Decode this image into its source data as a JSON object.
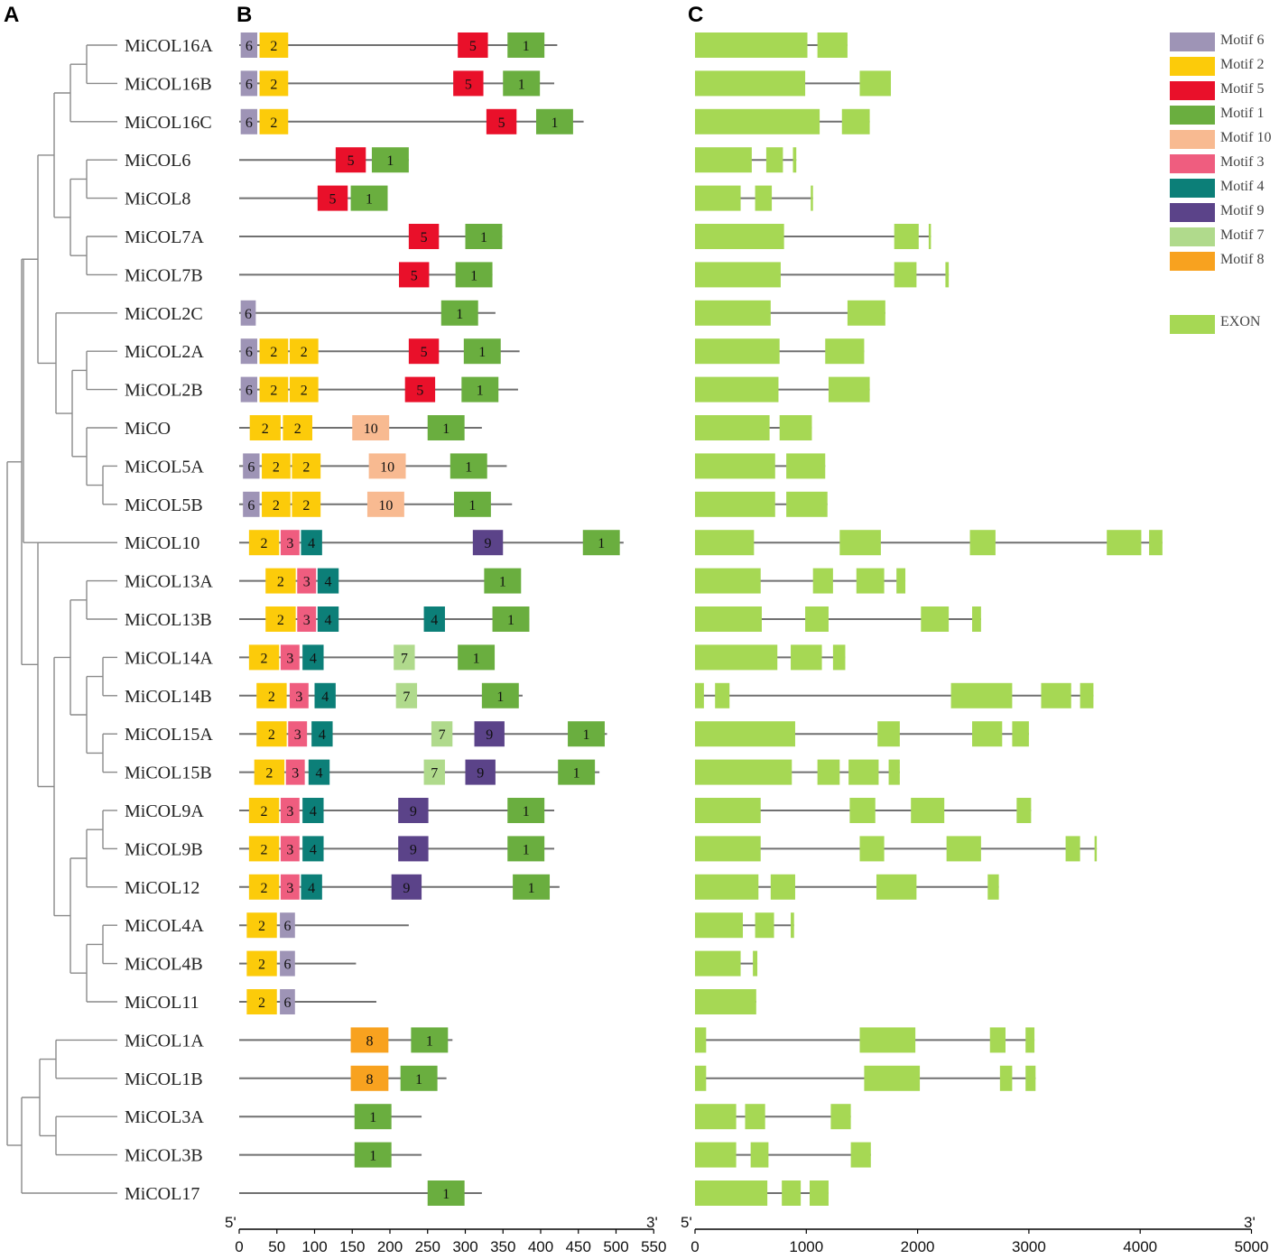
{
  "panels": {
    "a": "A",
    "b": "B",
    "c": "C"
  },
  "genes": [
    "MiCOL16A",
    "MiCOL16B",
    "MiCOL16C",
    "MiCOL6",
    "MiCOL8",
    "MiCOL7A",
    "MiCOL7B",
    "MiCOL2C",
    "MiCOL2A",
    "MiCOL2B",
    "MiCO",
    "MiCOL5A",
    "MiCOL5B",
    "MiCOL10",
    "MiCOL13A",
    "MiCOL13B",
    "MiCOL14A",
    "MiCOL14B",
    "MiCOL15A",
    "MiCOL15B",
    "MiCOL9A",
    "MiCOL9B",
    "MiCOL12",
    "MiCOL4A",
    "MiCOL4B",
    "MiCOL11",
    "MiCOL1A",
    "MiCOL1B",
    "MiCOL3A",
    "MiCOL3B",
    "MiCOL17"
  ],
  "motif_colors": {
    "1": "#6aae3f",
    "2": "#fccb0a",
    "3": "#ef5d7f",
    "4": "#0c7f78",
    "5": "#e9102a",
    "6": "#9e94b6",
    "7": "#b0da8c",
    "8": "#f8a21f",
    "9": "#5b4389",
    "10": "#f8ba91"
  },
  "exon_color": "#a6d854",
  "legend": {
    "motifs": [
      {
        "key": "6",
        "label": "Motif 6"
      },
      {
        "key": "2",
        "label": "Motif 2"
      },
      {
        "key": "5",
        "label": "Motif 5"
      },
      {
        "key": "1",
        "label": "Motif 1"
      },
      {
        "key": "10",
        "label": "Motif 10"
      },
      {
        "key": "3",
        "label": "Motif 3"
      },
      {
        "key": "4",
        "label": "Motif 4"
      },
      {
        "key": "9",
        "label": "Motif 9"
      },
      {
        "key": "7",
        "label": "Motif 7"
      },
      {
        "key": "8",
        "label": "Motif 8"
      }
    ],
    "exon_label": "EXON"
  },
  "protein": {
    "axis": {
      "start_label": "5'",
      "end_label": "3'",
      "ticks": [
        0,
        50,
        100,
        150,
        200,
        250,
        300,
        350,
        400,
        450,
        500,
        550
      ],
      "range": [
        0,
        550
      ]
    },
    "rows": [
      {
        "len": 422,
        "motifs": [
          [
            "6",
            2,
            24
          ],
          [
            "2",
            27,
            65
          ],
          [
            "5",
            290,
            330
          ],
          [
            "1",
            356,
            405
          ]
        ]
      },
      {
        "len": 418,
        "motifs": [
          [
            "6",
            2,
            24
          ],
          [
            "2",
            27,
            65
          ],
          [
            "5",
            284,
            324
          ],
          [
            "1",
            350,
            399
          ]
        ]
      },
      {
        "len": 457,
        "motifs": [
          [
            "6",
            2,
            24
          ],
          [
            "2",
            27,
            65
          ],
          [
            "5",
            328,
            368
          ],
          [
            "1",
            394,
            443
          ]
        ]
      },
      {
        "len": 225,
        "motifs": [
          [
            "5",
            128,
            168
          ],
          [
            "1",
            176,
            225
          ]
        ]
      },
      {
        "len": 195,
        "motifs": [
          [
            "5",
            104,
            144
          ],
          [
            "1",
            148,
            197
          ]
        ]
      },
      {
        "len": 349,
        "motifs": [
          [
            "5",
            225,
            265
          ],
          [
            "1",
            300,
            349
          ]
        ]
      },
      {
        "len": 336,
        "motifs": [
          [
            "5",
            212,
            252
          ],
          [
            "1",
            287,
            336
          ]
        ]
      },
      {
        "len": 340,
        "motifs": [
          [
            "6",
            2,
            22
          ],
          [
            "1",
            268,
            317
          ]
        ]
      },
      {
        "len": 372,
        "motifs": [
          [
            "6",
            2,
            24
          ],
          [
            "2",
            27,
            65
          ],
          [
            "2",
            67,
            105
          ],
          [
            "5",
            225,
            265
          ],
          [
            "1",
            298,
            347
          ]
        ]
      },
      {
        "len": 370,
        "motifs": [
          [
            "6",
            2,
            24
          ],
          [
            "2",
            27,
            65
          ],
          [
            "2",
            67,
            105
          ],
          [
            "5",
            220,
            260
          ],
          [
            "1",
            295,
            344
          ]
        ]
      },
      {
        "len": 322,
        "motifs": [
          [
            "2",
            14,
            55
          ],
          [
            "2",
            58,
            97
          ],
          [
            "10",
            150,
            199
          ],
          [
            "1",
            250,
            299
          ]
        ]
      },
      {
        "len": 355,
        "motifs": [
          [
            "6",
            5,
            27
          ],
          [
            "2",
            30,
            68
          ],
          [
            "2",
            70,
            108
          ],
          [
            "10",
            172,
            221
          ],
          [
            "1",
            280,
            329
          ]
        ]
      },
      {
        "len": 362,
        "motifs": [
          [
            "6",
            5,
            27
          ],
          [
            "2",
            30,
            68
          ],
          [
            "2",
            70,
            108
          ],
          [
            "10",
            170,
            219
          ],
          [
            "1",
            285,
            334
          ]
        ]
      },
      {
        "len": 510,
        "motifs": [
          [
            "2",
            13,
            53
          ],
          [
            "3",
            55,
            80
          ],
          [
            "4",
            82,
            110
          ],
          [
            "9",
            310,
            350
          ],
          [
            "1",
            456,
            505
          ]
        ]
      },
      {
        "len": 372,
        "motifs": [
          [
            "2",
            35,
            75
          ],
          [
            "3",
            77,
            102
          ],
          [
            "4",
            104,
            132
          ],
          [
            "1",
            325,
            374
          ]
        ]
      },
      {
        "len": 385,
        "motifs": [
          [
            "2",
            35,
            75
          ],
          [
            "3",
            77,
            102
          ],
          [
            "4",
            104,
            132
          ],
          [
            "4",
            245,
            273
          ],
          [
            "1",
            336,
            385
          ]
        ]
      },
      {
        "len": 336,
        "motifs": [
          [
            "2",
            13,
            53
          ],
          [
            "3",
            55,
            80
          ],
          [
            "4",
            84,
            112
          ],
          [
            "7",
            205,
            233
          ],
          [
            "1",
            290,
            339
          ]
        ]
      },
      {
        "len": 376,
        "motifs": [
          [
            "2",
            23,
            63
          ],
          [
            "3",
            67,
            92
          ],
          [
            "4",
            100,
            128
          ],
          [
            "7",
            208,
            236
          ],
          [
            "1",
            322,
            371
          ]
        ]
      },
      {
        "len": 488,
        "motifs": [
          [
            "2",
            23,
            63
          ],
          [
            "3",
            65,
            90
          ],
          [
            "4",
            96,
            124
          ],
          [
            "7",
            255,
            283
          ],
          [
            "9",
            312,
            352
          ],
          [
            "1",
            436,
            485
          ]
        ]
      },
      {
        "len": 478,
        "motifs": [
          [
            "2",
            20,
            60
          ],
          [
            "3",
            62,
            87
          ],
          [
            "4",
            92,
            120
          ],
          [
            "7",
            245,
            273
          ],
          [
            "9",
            300,
            340
          ],
          [
            "1",
            423,
            472
          ]
        ]
      },
      {
        "len": 418,
        "motifs": [
          [
            "2",
            13,
            53
          ],
          [
            "3",
            55,
            80
          ],
          [
            "4",
            84,
            112
          ],
          [
            "9",
            211,
            251
          ],
          [
            "1",
            356,
            405
          ]
        ]
      },
      {
        "len": 418,
        "motifs": [
          [
            "2",
            13,
            53
          ],
          [
            "3",
            55,
            80
          ],
          [
            "4",
            84,
            112
          ],
          [
            "9",
            211,
            251
          ],
          [
            "1",
            356,
            405
          ]
        ]
      },
      {
        "len": 425,
        "motifs": [
          [
            "2",
            13,
            53
          ],
          [
            "3",
            55,
            80
          ],
          [
            "4",
            82,
            110
          ],
          [
            "9",
            202,
            242
          ],
          [
            "1",
            363,
            412
          ]
        ]
      },
      {
        "len": 225,
        "motifs": [
          [
            "2",
            10,
            50
          ],
          [
            "6",
            54,
            74
          ]
        ]
      },
      {
        "len": 155,
        "motifs": [
          [
            "2",
            10,
            50
          ],
          [
            "6",
            54,
            74
          ]
        ]
      },
      {
        "len": 182,
        "motifs": [
          [
            "2",
            10,
            50
          ],
          [
            "6",
            54,
            74
          ]
        ]
      },
      {
        "len": 283,
        "motifs": [
          [
            "8",
            148,
            198
          ],
          [
            "1",
            228,
            277
          ]
        ]
      },
      {
        "len": 275,
        "motifs": [
          [
            "8",
            148,
            198
          ],
          [
            "1",
            214,
            263
          ]
        ]
      },
      {
        "len": 242,
        "motifs": [
          [
            "1",
            153,
            202
          ]
        ]
      },
      {
        "len": 242,
        "motifs": [
          [
            "1",
            153,
            202
          ]
        ]
      },
      {
        "len": 322,
        "motifs": [
          [
            "1",
            250,
            299
          ]
        ]
      }
    ]
  },
  "gene_structure": {
    "axis": {
      "start_label": "5'",
      "end_label": "3'",
      "ticks": [
        0,
        1000,
        2000,
        3000,
        4000,
        5000
      ],
      "range": [
        0,
        5000
      ]
    },
    "rows": [
      {
        "len": 1370,
        "exons": [
          [
            0,
            1010
          ],
          [
            1100,
            1370
          ]
        ]
      },
      {
        "len": 1760,
        "exons": [
          [
            0,
            990
          ],
          [
            1480,
            1760
          ]
        ]
      },
      {
        "len": 1570,
        "exons": [
          [
            0,
            1120
          ],
          [
            1320,
            1570
          ]
        ]
      },
      {
        "len": 910,
        "exons": [
          [
            0,
            510
          ],
          [
            640,
            790
          ],
          [
            880,
            910
          ]
        ]
      },
      {
        "len": 1060,
        "exons": [
          [
            0,
            410
          ],
          [
            540,
            690
          ],
          [
            1040,
            1060
          ]
        ]
      },
      {
        "len": 2120,
        "exons": [
          [
            0,
            800
          ],
          [
            1790,
            2010
          ],
          [
            2100,
            2120
          ]
        ]
      },
      {
        "len": 2280,
        "exons": [
          [
            0,
            770
          ],
          [
            1790,
            1990
          ],
          [
            2250,
            2280
          ]
        ]
      },
      {
        "len": 1710,
        "exons": [
          [
            0,
            680
          ],
          [
            1370,
            1710
          ]
        ]
      },
      {
        "len": 1520,
        "exons": [
          [
            0,
            760
          ],
          [
            1170,
            1520
          ]
        ]
      },
      {
        "len": 1570,
        "exons": [
          [
            0,
            750
          ],
          [
            1200,
            1570
          ]
        ]
      },
      {
        "len": 1050,
        "exons": [
          [
            0,
            670
          ],
          [
            760,
            1050
          ]
        ]
      },
      {
        "len": 1170,
        "exons": [
          [
            0,
            720
          ],
          [
            820,
            1170
          ]
        ]
      },
      {
        "len": 1190,
        "exons": [
          [
            0,
            720
          ],
          [
            820,
            1190
          ]
        ]
      },
      {
        "len": 4200,
        "exons": [
          [
            0,
            530
          ],
          [
            1300,
            1670
          ],
          [
            2470,
            2700
          ],
          [
            3700,
            4010
          ],
          [
            4080,
            4200
          ]
        ]
      },
      {
        "len": 1890,
        "exons": [
          [
            0,
            590
          ],
          [
            1060,
            1240
          ],
          [
            1450,
            1700
          ],
          [
            1810,
            1890
          ]
        ]
      },
      {
        "len": 2570,
        "exons": [
          [
            0,
            600
          ],
          [
            990,
            1200
          ],
          [
            2030,
            2280
          ],
          [
            2490,
            2570
          ]
        ]
      },
      {
        "len": 1350,
        "exons": [
          [
            0,
            740
          ],
          [
            860,
            1140
          ],
          [
            1240,
            1350
          ]
        ]
      },
      {
        "len": 3580,
        "exons": [
          [
            0,
            80
          ],
          [
            180,
            310
          ],
          [
            2300,
            2850
          ],
          [
            3110,
            3380
          ],
          [
            3460,
            3580
          ]
        ]
      },
      {
        "len": 3000,
        "exons": [
          [
            0,
            900
          ],
          [
            1640,
            1840
          ],
          [
            2490,
            2760
          ],
          [
            2850,
            3000
          ]
        ]
      },
      {
        "len": 1840,
        "exons": [
          [
            0,
            870
          ],
          [
            1100,
            1300
          ],
          [
            1380,
            1650
          ],
          [
            1740,
            1840
          ]
        ]
      },
      {
        "len": 3020,
        "exons": [
          [
            0,
            590
          ],
          [
            1390,
            1620
          ],
          [
            1940,
            2240
          ],
          [
            2890,
            3020
          ]
        ]
      },
      {
        "len": 3610,
        "exons": [
          [
            0,
            590
          ],
          [
            1480,
            1700
          ],
          [
            2260,
            2570
          ],
          [
            3330,
            3460
          ],
          [
            3590,
            3610
          ]
        ]
      },
      {
        "len": 2730,
        "exons": [
          [
            0,
            570
          ],
          [
            680,
            900
          ],
          [
            1630,
            1990
          ],
          [
            2630,
            2730
          ]
        ]
      },
      {
        "len": 890,
        "exons": [
          [
            0,
            430
          ],
          [
            540,
            710
          ],
          [
            860,
            890
          ]
        ]
      },
      {
        "len": 560,
        "exons": [
          [
            0,
            410
          ],
          [
            520,
            560
          ]
        ]
      },
      {
        "len": 550,
        "exons": [
          [
            0,
            550
          ]
        ]
      },
      {
        "len": 3050,
        "exons": [
          [
            0,
            100
          ],
          [
            1480,
            1980
          ],
          [
            2650,
            2790
          ],
          [
            2970,
            3050
          ]
        ]
      },
      {
        "len": 3060,
        "exons": [
          [
            0,
            100
          ],
          [
            1520,
            2020
          ],
          [
            2740,
            2850
          ],
          [
            2970,
            3060
          ]
        ]
      },
      {
        "len": 1400,
        "exons": [
          [
            0,
            370
          ],
          [
            450,
            630
          ],
          [
            1220,
            1400
          ]
        ]
      },
      {
        "len": 1580,
        "exons": [
          [
            0,
            370
          ],
          [
            500,
            660
          ],
          [
            1400,
            1580
          ]
        ]
      },
      {
        "len": 1200,
        "exons": [
          [
            0,
            650
          ],
          [
            780,
            950
          ],
          [
            1030,
            1200
          ]
        ]
      }
    ]
  }
}
